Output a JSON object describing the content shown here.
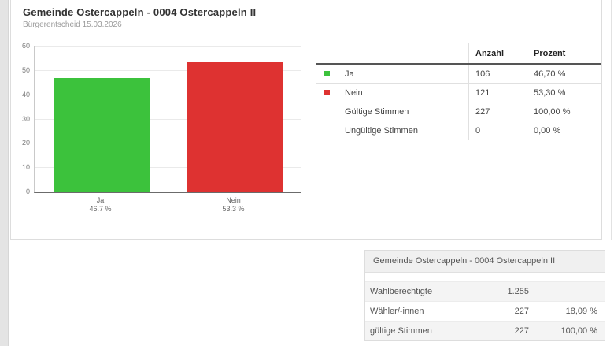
{
  "card": {
    "title": "Gemeinde Ostercappeln - 0004 Ostercappeln II",
    "subtitle": "Bürgerentscheid 15.03.2026"
  },
  "chart_data": {
    "type": "bar",
    "categories": [
      "Ja",
      "Nein"
    ],
    "values": [
      46.7,
      53.3
    ],
    "bar_labels": [
      [
        "Ja",
        "46.7 %"
      ],
      [
        "Nein",
        "53.3 %"
      ]
    ],
    "colors": [
      "#3cc23c",
      "#de3231"
    ],
    "title": "",
    "xlabel": "",
    "ylabel": "",
    "ylim": [
      0,
      60
    ],
    "yticks": [
      0,
      10,
      20,
      30,
      40,
      50,
      60
    ],
    "grid": true,
    "legend_position": "none"
  },
  "results_table": {
    "headers": [
      "",
      "",
      "Anzahl",
      "Prozent"
    ],
    "rows": [
      {
        "swatch": "#3cc23c",
        "label": "Ja",
        "anzahl": "106",
        "prozent": "46,70 %"
      },
      {
        "swatch": "#de3231",
        "label": "Nein",
        "anzahl": "121",
        "prozent": "53,30 %"
      },
      {
        "swatch": null,
        "label": "Gültige Stimmen",
        "anzahl": "227",
        "prozent": "100,00 %"
      },
      {
        "swatch": null,
        "label": "Ungültige Stimmen",
        "anzahl": "0",
        "prozent": "0,00 %"
      }
    ]
  },
  "summary_table": {
    "title": "Gemeinde Ostercappeln - 0004 Ostercappeln II",
    "rows": [
      {
        "label": "Wahlberechtigte",
        "value": "1.255",
        "percent": ""
      },
      {
        "label": "Wähler/-innen",
        "value": "227",
        "percent": "18,09 %"
      },
      {
        "label": "gültige Stimmen",
        "value": "227",
        "percent": "100,00 %"
      }
    ]
  },
  "colors": {
    "yes": "#3cc23c",
    "no": "#de3231",
    "baseline": "#6b6b6b",
    "gridline": "#eaeaea",
    "table_header_underline": "#555555",
    "shaded_row": "#f4f4f4",
    "gutter": "#e4e4e4"
  }
}
